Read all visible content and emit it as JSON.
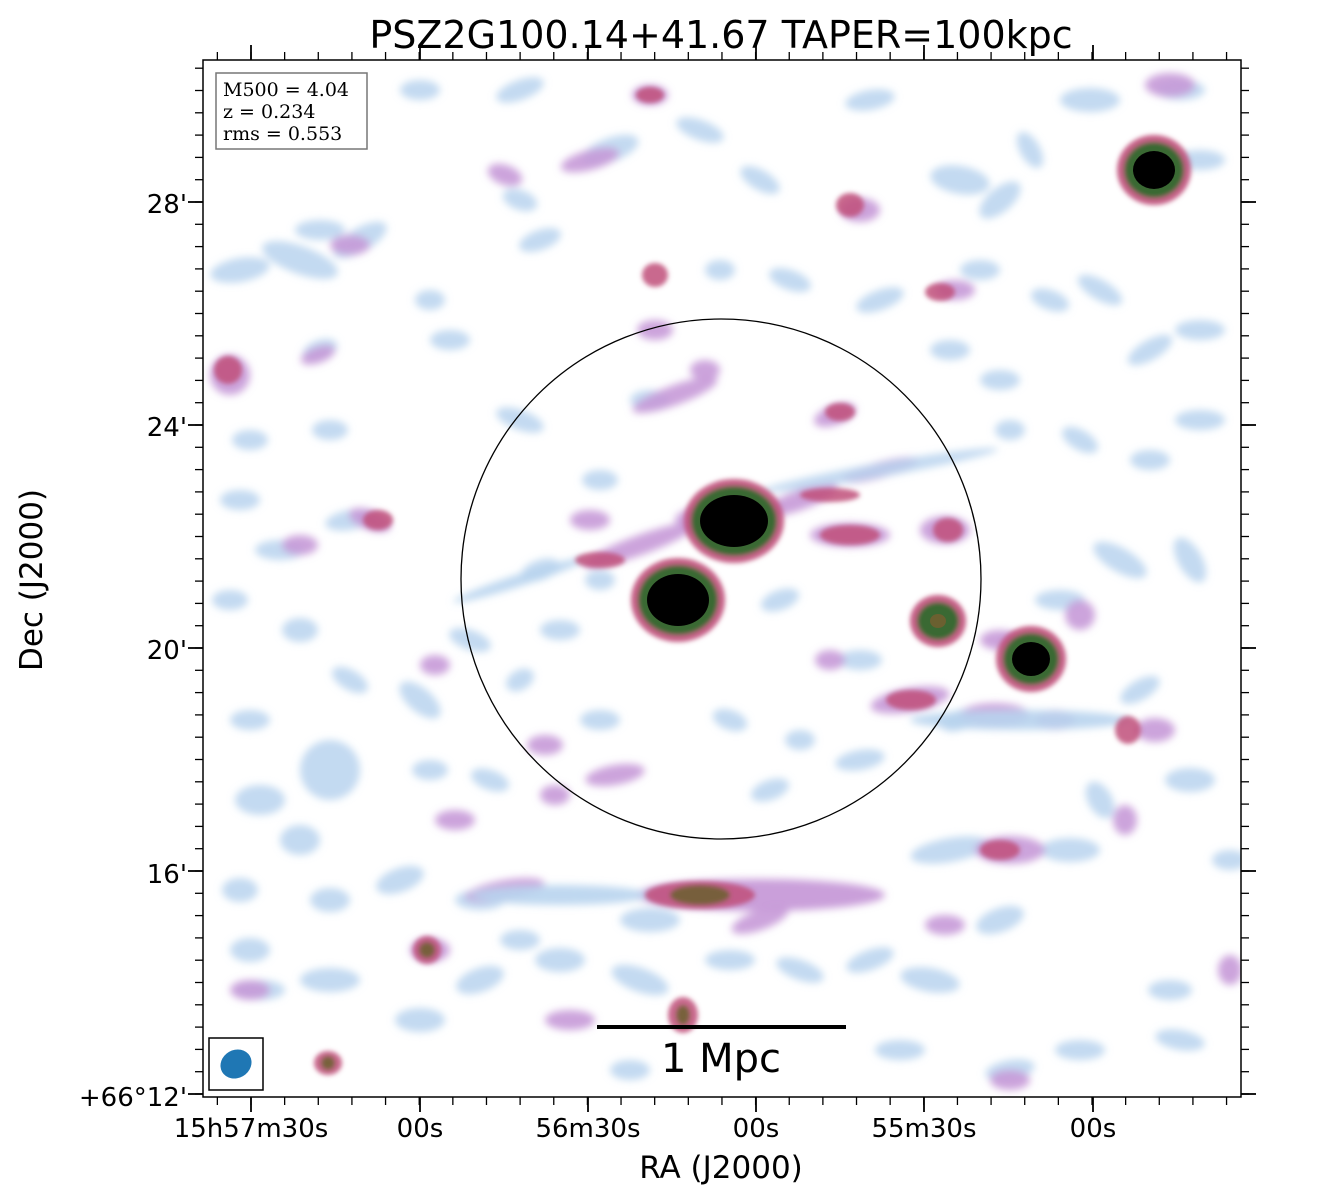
{
  "chart_data": {
    "type": "heatmap",
    "title": "PSZ2G100.14+41.67 TAPER=100kpc",
    "xlabel": "RA (J2000)",
    "ylabel": "Dec (J2000)",
    "x_ticks": [
      "15h57m30s",
      "00s",
      "56m30s",
      "00s",
      "55m30s",
      "00s"
    ],
    "y_ticks": [
      "+66°12'",
      "16'",
      "20'",
      "24'",
      "28'"
    ],
    "info_box": [
      "M500 = 4.04",
      "z = 0.234",
      "rms = 0.553"
    ],
    "scalebar_label": "1 Mpc",
    "colors": {
      "faint": "#b8d4ee",
      "mid": "#c79ad8",
      "bright": "#c0507a",
      "peak": "#6b6030",
      "core": "#000000",
      "beam": "#1f77b4"
    }
  }
}
